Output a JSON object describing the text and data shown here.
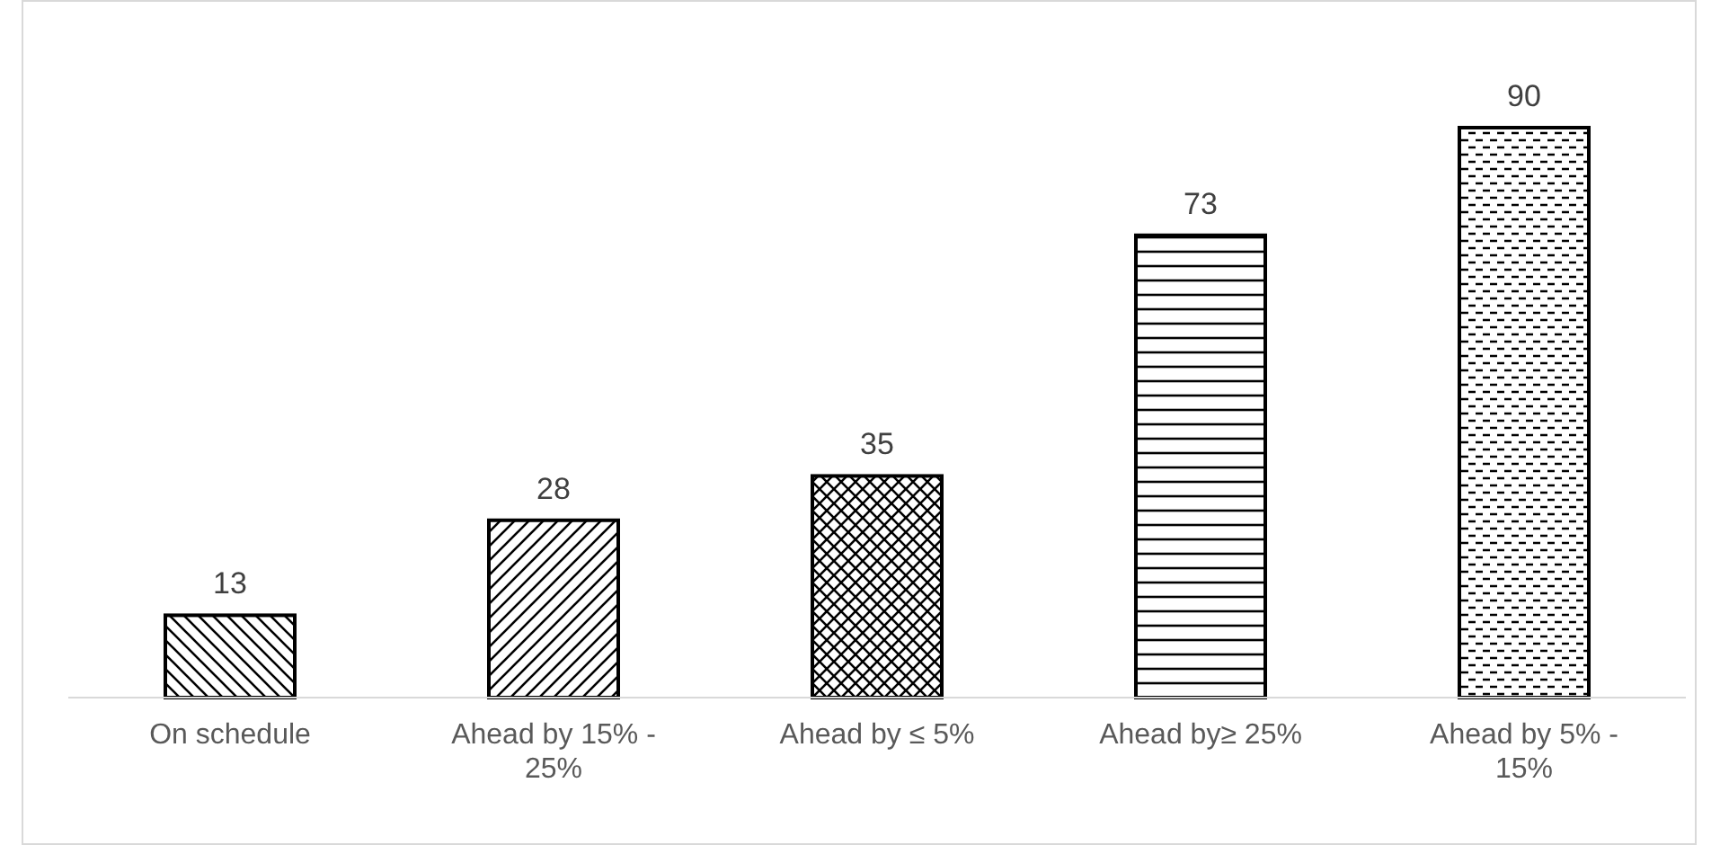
{
  "chart_data": {
    "type": "bar",
    "categories": [
      "On schedule",
      "Ahead by 15% - 25%",
      "Ahead by ≤ 5%",
      "Ahead by≥ 25%",
      "Ahead by 5% - 15%"
    ],
    "values": [
      13,
      28,
      35,
      73,
      90
    ],
    "color": "#000000",
    "data_labels": true
  }
}
